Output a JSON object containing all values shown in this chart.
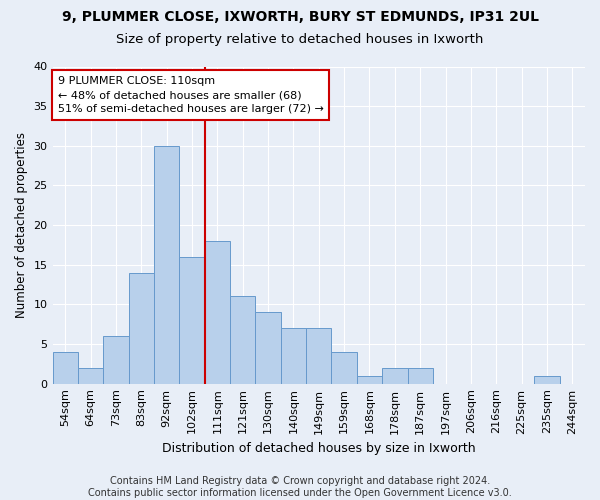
{
  "title1": "9, PLUMMER CLOSE, IXWORTH, BURY ST EDMUNDS, IP31 2UL",
  "title2": "Size of property relative to detached houses in Ixworth",
  "xlabel": "Distribution of detached houses by size in Ixworth",
  "ylabel": "Number of detached properties",
  "categories": [
    "54sqm",
    "64sqm",
    "73sqm",
    "83sqm",
    "92sqm",
    "102sqm",
    "111sqm",
    "121sqm",
    "130sqm",
    "140sqm",
    "149sqm",
    "159sqm",
    "168sqm",
    "178sqm",
    "187sqm",
    "197sqm",
    "206sqm",
    "216sqm",
    "225sqm",
    "235sqm",
    "244sqm"
  ],
  "values": [
    4,
    2,
    6,
    14,
    30,
    16,
    18,
    11,
    9,
    7,
    7,
    4,
    1,
    2,
    2,
    0,
    0,
    0,
    0,
    1,
    0
  ],
  "bar_color": "#b8d0eb",
  "bar_edge_color": "#6699cc",
  "vline_color": "#cc0000",
  "vline_pos": 5.5,
  "annotation_line1": "9 PLUMMER CLOSE: 110sqm",
  "annotation_line2": "← 48% of detached houses are smaller (68)",
  "annotation_line3": "51% of semi-detached houses are larger (72) →",
  "annotation_box_color": "#ffffff",
  "annotation_box_edge": "#cc0000",
  "ylim": [
    0,
    40
  ],
  "yticks": [
    0,
    5,
    10,
    15,
    20,
    25,
    30,
    35,
    40
  ],
  "footnote": "Contains HM Land Registry data © Crown copyright and database right 2024.\nContains public sector information licensed under the Open Government Licence v3.0.",
  "title1_fontsize": 10,
  "title2_fontsize": 9.5,
  "xlabel_fontsize": 9,
  "ylabel_fontsize": 8.5,
  "tick_fontsize": 8,
  "annotation_fontsize": 8,
  "footnote_fontsize": 7,
  "bg_color": "#e8eef7"
}
